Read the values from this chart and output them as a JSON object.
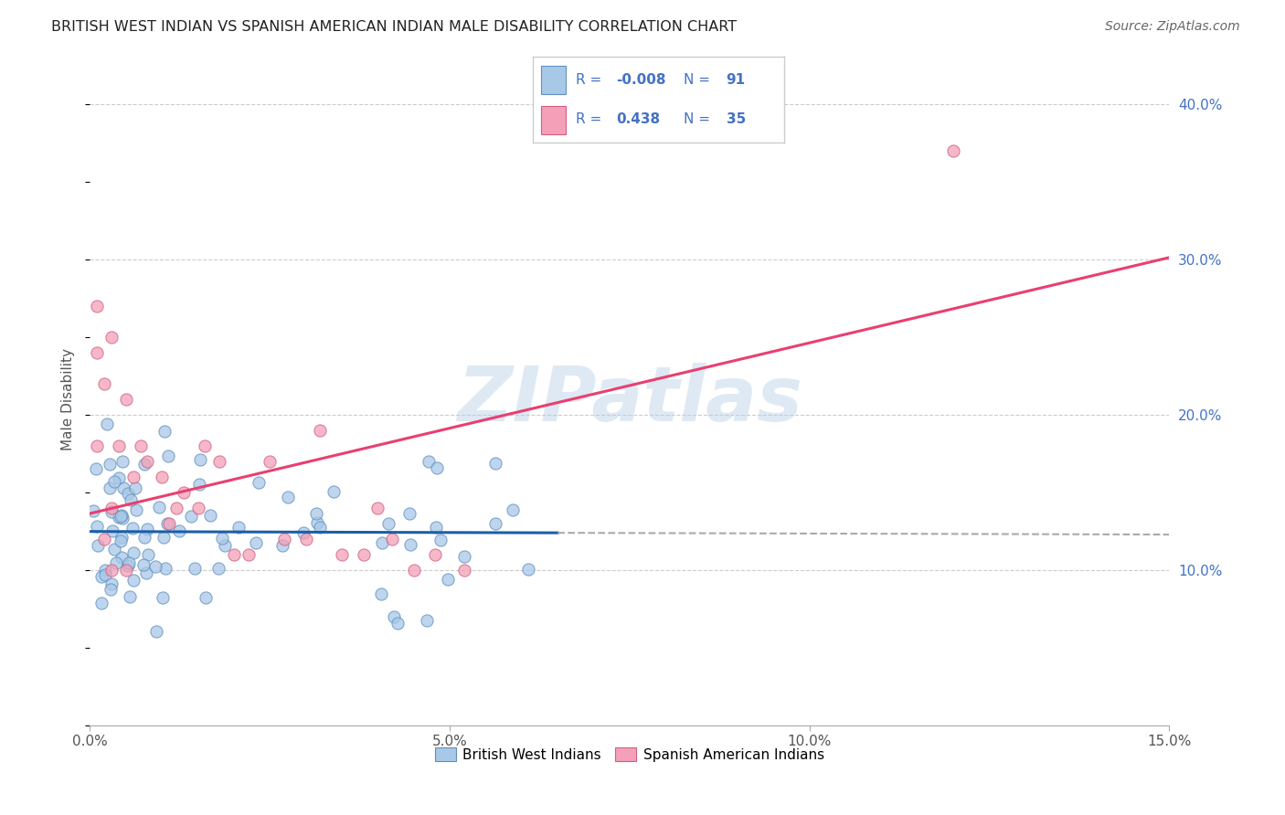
{
  "title": "BRITISH WEST INDIAN VS SPANISH AMERICAN INDIAN MALE DISABILITY CORRELATION CHART",
  "source": "Source: ZipAtlas.com",
  "ylabel": "Male Disability",
  "watermark": "ZIPatlas",
  "xlim": [
    0.0,
    0.15
  ],
  "ylim": [
    0.0,
    0.42
  ],
  "xticks": [
    0.0,
    0.05,
    0.1,
    0.15
  ],
  "yticks_right": [
    0.1,
    0.2,
    0.3,
    0.4
  ],
  "ytick_labels_right": [
    "10.0%",
    "20.0%",
    "30.0%",
    "40.0%"
  ],
  "xtick_labels": [
    "0.0%",
    "5.0%",
    "10.0%",
    "15.0%"
  ],
  "legend_label1": "British West Indians",
  "legend_label2": "Spanish American Indians",
  "R1": "-0.008",
  "N1": "91",
  "R2": "0.438",
  "N2": "35",
  "color_blue": "#a8c8e8",
  "color_pink": "#f4a0b8",
  "color_blue_edge": "#6090c0",
  "color_pink_edge": "#d06080",
  "trend_blue": "#1a5fa8",
  "trend_pink": "#e84070",
  "trend_dash_color": "#aaaaaa",
  "background_color": "#ffffff",
  "grid_color": "#cccccc",
  "text_color_blue": "#4472c4",
  "text_color_dark": "#333333"
}
